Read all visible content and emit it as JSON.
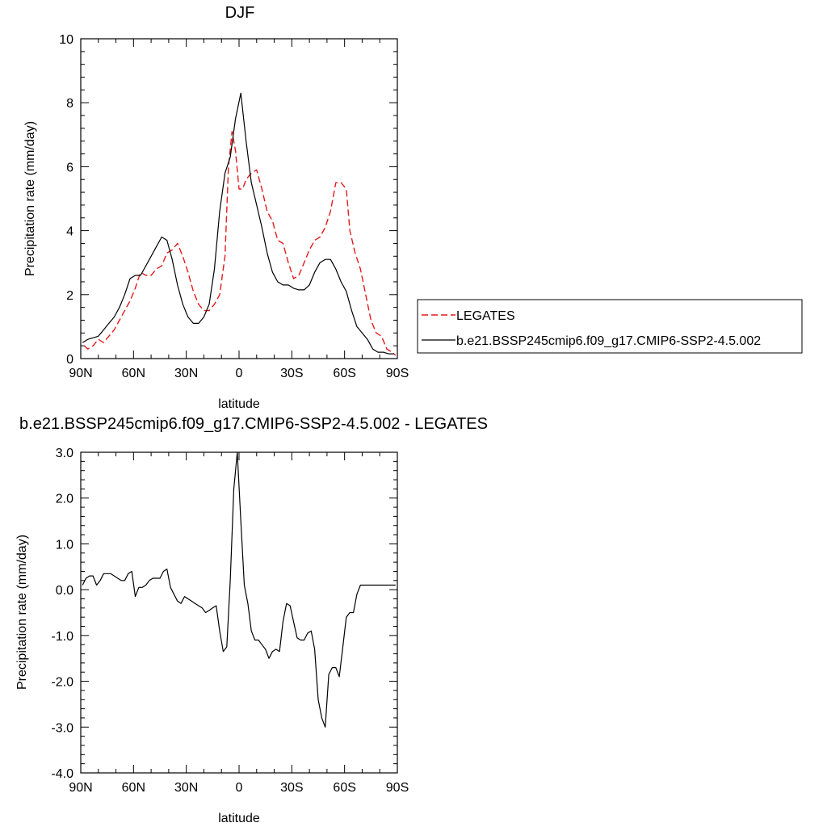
{
  "charts": [
    {
      "type": "line",
      "title": "DJF",
      "xlabel": "latitude",
      "ylabel": "Precipitation rate (mm/day)",
      "xticks": [
        "90N",
        "60N",
        "30N",
        "0",
        "30S",
        "60S",
        "90S"
      ],
      "yticks": [
        "0",
        "2",
        "4",
        "6",
        "8",
        "10"
      ],
      "ylim": [
        0,
        10
      ],
      "xlim": [
        90,
        -90
      ]
    },
    {
      "type": "line",
      "title": "b.e21.BSSP245cmip6.f09_g17.CMIP6-SSP2-4.5.002 - LEGATES",
      "xlabel": "latitude",
      "ylabel": "Precipitation rate (mm/day)",
      "xticks": [
        "90N",
        "60N",
        "30N",
        "0",
        "30S",
        "60S",
        "90S"
      ],
      "yticks": [
        "-4.0",
        "-3.0",
        "-2.0",
        "-1.0",
        "0.0",
        "1.0",
        "2.0",
        "3.0"
      ],
      "ylim": [
        -4,
        3
      ],
      "xlim": [
        90,
        -90
      ]
    }
  ],
  "legend": {
    "placement": "right",
    "entries": [
      {
        "label": "LEGATES",
        "color": "#e41a1c",
        "dash": "dashed"
      },
      {
        "label": "b.e21.BSSP245cmip6.f09_g17.CMIP6-SSP2-4.5.002",
        "color": "#000000",
        "dash": "solid"
      }
    ]
  },
  "chart_data": [
    {
      "type": "line",
      "title": "DJF",
      "xlabel": "latitude",
      "ylabel": "Precipitation rate (mm/day)",
      "ylim": [
        0,
        10
      ],
      "xlim": [
        90,
        -90
      ],
      "series": [
        {
          "name": "LEGATES",
          "color": "#e41a1c",
          "x": [
            88,
            86,
            83,
            80,
            77,
            74,
            71,
            68,
            65,
            62,
            59,
            56,
            53,
            50,
            47,
            44,
            41,
            38,
            35,
            32,
            29,
            26,
            23,
            20,
            17,
            14,
            11,
            8,
            6,
            4,
            2,
            0,
            -2,
            -4,
            -7,
            -10,
            -13,
            -16,
            -19,
            -22,
            -25,
            -28,
            -31,
            -34,
            -37,
            -40,
            -43,
            -46,
            -49,
            -52,
            -55,
            -58,
            -61,
            -63,
            -66,
            -69,
            -72,
            -75,
            -78,
            -81,
            -84,
            -87,
            -89
          ],
          "y": [
            0.4,
            0.3,
            0.4,
            0.6,
            0.5,
            0.7,
            0.9,
            1.2,
            1.5,
            1.8,
            2.2,
            2.7,
            2.6,
            2.6,
            2.8,
            2.9,
            3.3,
            3.4,
            3.6,
            3.2,
            2.7,
            2.1,
            1.7,
            1.5,
            1.5,
            1.7,
            2.0,
            3.2,
            6.0,
            7.1,
            6.5,
            5.3,
            5.3,
            5.6,
            5.8,
            5.9,
            5.3,
            4.6,
            4.3,
            3.7,
            3.6,
            3.0,
            2.5,
            2.6,
            3.0,
            3.4,
            3.7,
            3.8,
            4.1,
            4.6,
            5.5,
            5.5,
            5.3,
            4.0,
            3.3,
            2.8,
            2.0,
            1.2,
            0.8,
            0.7,
            0.3,
            0.2,
            0.1
          ]
        },
        {
          "name": "b.e21.BSSP245cmip6.f09_g17.CMIP6-SSP2-4.5.002",
          "color": "#000000",
          "x": [
            89,
            86,
            83,
            80,
            77,
            74,
            71,
            68,
            65,
            62,
            59,
            56,
            53,
            50,
            47,
            44,
            41,
            38,
            35,
            32,
            29,
            26,
            23,
            20,
            17,
            14,
            11,
            8,
            5,
            2,
            -1,
            -4,
            -7,
            -10,
            -13,
            -16,
            -19,
            -22,
            -25,
            -28,
            -31,
            -34,
            -37,
            -40,
            -43,
            -46,
            -49,
            -52,
            -55,
            -58,
            -61,
            -64,
            -67,
            -70,
            -73,
            -76,
            -79,
            -82,
            -85,
            -88
          ],
          "y": [
            0.5,
            0.6,
            0.65,
            0.7,
            0.9,
            1.1,
            1.3,
            1.6,
            2.0,
            2.5,
            2.6,
            2.6,
            2.9,
            3.2,
            3.5,
            3.8,
            3.7,
            3.1,
            2.3,
            1.7,
            1.3,
            1.1,
            1.1,
            1.3,
            1.7,
            2.8,
            4.6,
            5.8,
            6.3,
            7.5,
            8.3,
            6.8,
            5.5,
            4.8,
            4.1,
            3.3,
            2.7,
            2.4,
            2.3,
            2.3,
            2.2,
            2.15,
            2.15,
            2.3,
            2.7,
            3.0,
            3.1,
            3.1,
            2.8,
            2.4,
            2.1,
            1.5,
            1.0,
            0.8,
            0.6,
            0.3,
            0.2,
            0.2,
            0.15,
            0.15
          ]
        }
      ]
    },
    {
      "type": "line",
      "title": "b.e21.BSSP245cmip6.f09_g17.CMIP6-SSP2-4.5.002 - LEGATES",
      "xlabel": "latitude",
      "ylabel": "Precipitation rate (mm/day)",
      "ylim": [
        -4,
        3
      ],
      "xlim": [
        90,
        -90
      ],
      "series": [
        {
          "color": "#000000",
          "x": [
            89,
            87,
            85,
            83,
            81,
            79,
            77,
            75,
            73,
            71,
            69,
            67,
            65,
            63,
            61,
            59,
            57,
            55,
            53,
            51,
            49,
            47,
            45,
            43,
            41,
            39,
            37,
            35,
            33,
            31,
            29,
            27,
            25,
            23,
            21,
            19,
            17,
            15,
            13,
            11,
            9,
            7,
            5,
            3,
            1,
            -1,
            -3,
            -5,
            -7,
            -9,
            -11,
            -13,
            -15,
            -17,
            -19,
            -21,
            -23,
            -25,
            -27,
            -29,
            -31,
            -33,
            -35,
            -37,
            -39,
            -41,
            -43,
            -45,
            -47,
            -49,
            -51,
            -53,
            -55,
            -57,
            -59,
            -61,
            -63,
            -65,
            -67,
            -69,
            -71,
            -73,
            -75,
            -77,
            -79,
            -81,
            -83,
            -85,
            -87,
            -89
          ],
          "y": [
            0.1,
            0.25,
            0.3,
            0.3,
            0.1,
            0.2,
            0.35,
            0.35,
            0.35,
            0.3,
            0.25,
            0.2,
            0.2,
            0.35,
            0.4,
            -0.15,
            0.05,
            0.05,
            0.1,
            0.2,
            0.25,
            0.25,
            0.25,
            0.4,
            0.45,
            0.05,
            -0.1,
            -0.25,
            -0.3,
            -0.15,
            -0.2,
            -0.25,
            -0.3,
            -0.35,
            -0.4,
            -0.5,
            -0.45,
            -0.4,
            -0.35,
            -0.9,
            -1.35,
            -1.25,
            0.2,
            2.2,
            3.0,
            1.5,
            0.1,
            -0.3,
            -0.9,
            -1.1,
            -1.1,
            -1.2,
            -1.3,
            -1.5,
            -1.35,
            -1.3,
            -1.35,
            -0.7,
            -0.3,
            -0.35,
            -0.7,
            -1.05,
            -1.1,
            -1.1,
            -0.95,
            -0.9,
            -1.3,
            -2.4,
            -2.8,
            -3.0,
            -1.85,
            -1.7,
            -1.7,
            -1.9,
            -1.25,
            -0.6,
            -0.5,
            -0.5,
            -0.1,
            0.1,
            0.1,
            0.1,
            0.1,
            0.1,
            0.1,
            0.1,
            0.1,
            0.1,
            0.1,
            0.1
          ]
        }
      ]
    }
  ]
}
